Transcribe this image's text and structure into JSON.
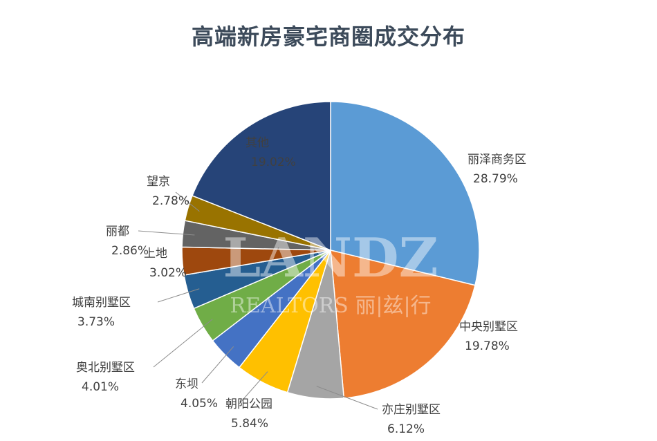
{
  "chart_data": {
    "type": "pie",
    "title": "高端新房豪宅商圈成交分布",
    "slices": [
      {
        "name": "丽泽商务区",
        "value": 28.79,
        "label": "28.79%",
        "color": "#5b9bd5"
      },
      {
        "name": "中央别墅区",
        "value": 19.78,
        "label": "19.78%",
        "color": "#ed7d31"
      },
      {
        "name": "亦庄别墅区",
        "value": 6.12,
        "label": "6.12%",
        "color": "#a5a5a5"
      },
      {
        "name": "朝阳公园",
        "value": 5.84,
        "label": "5.84%",
        "color": "#ffc000"
      },
      {
        "name": "东坝",
        "value": 4.05,
        "label": "4.05%",
        "color": "#4472c4"
      },
      {
        "name": "奥北别墅区",
        "value": 4.01,
        "label": "4.01%",
        "color": "#70ad47"
      },
      {
        "name": "城南别墅区",
        "value": 3.73,
        "label": "3.73%",
        "color": "#255e91"
      },
      {
        "name": "上地",
        "value": 3.02,
        "label": "3.02%",
        "color": "#9e480e"
      },
      {
        "name": "丽都",
        "value": 2.86,
        "label": "2.86%",
        "color": "#636363"
      },
      {
        "name": "望京",
        "value": 2.78,
        "label": "2.78%",
        "color": "#997300"
      },
      {
        "name": "其他",
        "value": 19.02,
        "label": "19.02%",
        "color": "#264478"
      }
    ],
    "watermark": {
      "line1": "LANDZ",
      "line2": "REALTORS 丽|兹|行"
    }
  }
}
